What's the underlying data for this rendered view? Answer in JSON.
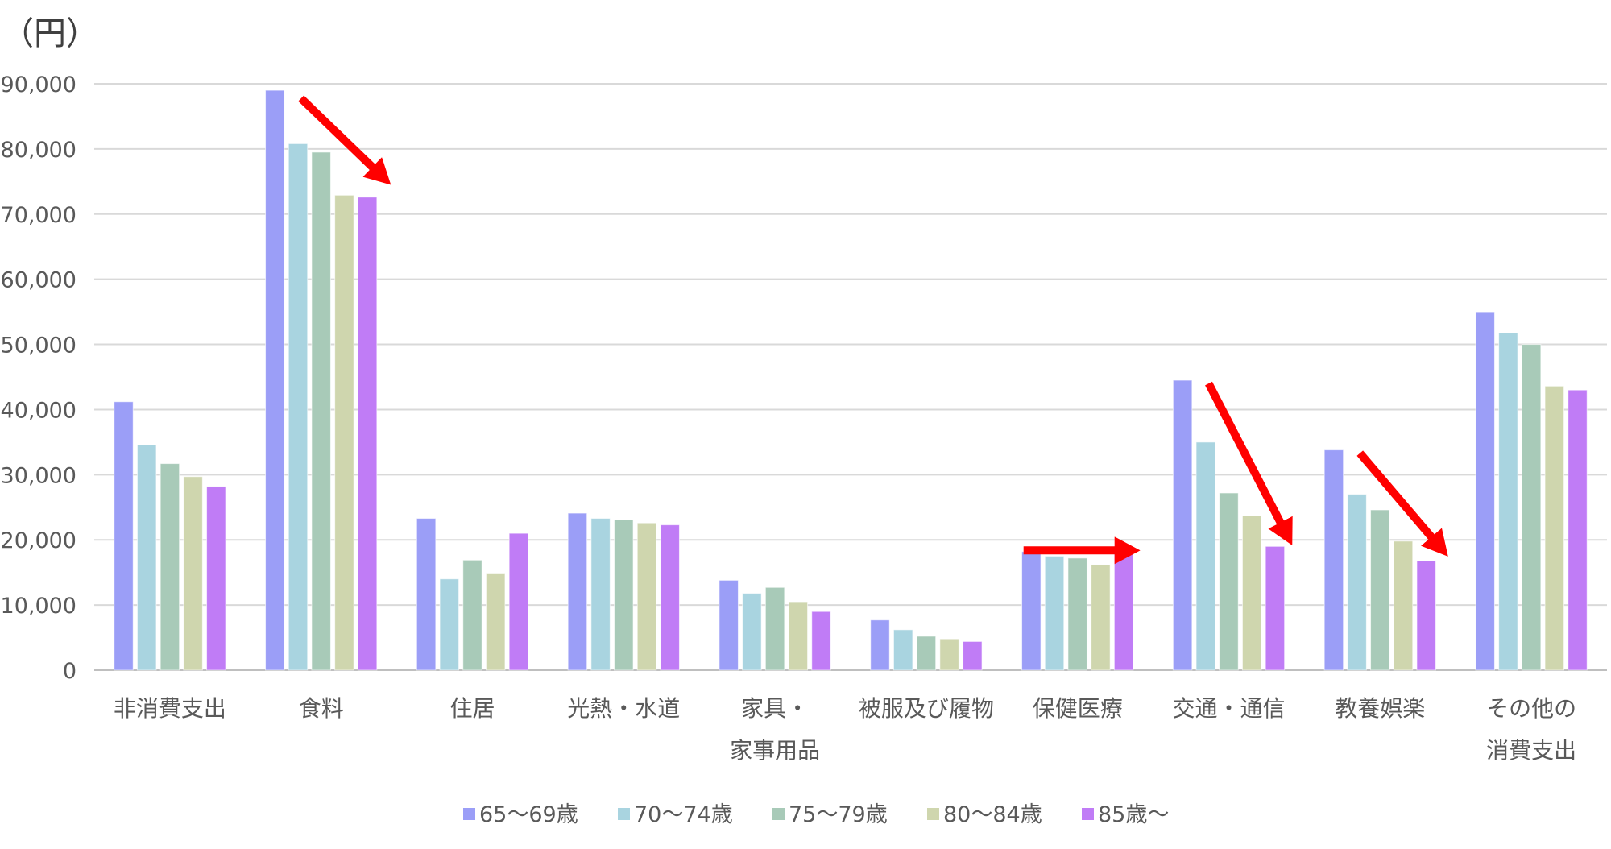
{
  "chart_data": {
    "type": "bar",
    "unit_label": "（円）",
    "categories": [
      [
        "非消費支出"
      ],
      [
        "食料"
      ],
      [
        "住居"
      ],
      [
        "光熱・水道"
      ],
      [
        "家具・",
        "家事用品"
      ],
      [
        "被服及び履物"
      ],
      [
        "保健医療"
      ],
      [
        "交通・通信"
      ],
      [
        "教養娯楽"
      ],
      [
        "その他の",
        "消費支出"
      ]
    ],
    "ylim": [
      0,
      90000
    ],
    "yticks": [
      0,
      10000,
      20000,
      30000,
      40000,
      50000,
      60000,
      70000,
      80000,
      90000
    ],
    "ytick_labels": [
      "0",
      "10,000",
      "20,000",
      "30,000",
      "40,000",
      "50,000",
      "60,000",
      "70,000",
      "80,000",
      "90,000"
    ],
    "grid": true,
    "legend_position": "bottom",
    "series": [
      {
        "name": "65〜69歳",
        "color": "#9b9ef7",
        "values": [
          41200,
          89000,
          23300,
          24100,
          13800,
          7700,
          18200,
          44500,
          33800,
          55000
        ]
      },
      {
        "name": "70〜74歳",
        "color": "#a9d4e0",
        "values": [
          34600,
          80800,
          14000,
          23300,
          11800,
          6200,
          17500,
          35000,
          27000,
          51800
        ]
      },
      {
        "name": "75〜79歳",
        "color": "#a8cab8",
        "values": [
          31700,
          79500,
          16900,
          23100,
          12700,
          5200,
          17200,
          27200,
          24600,
          50000
        ]
      },
      {
        "name": "80〜84歳",
        "color": "#cfd6ae",
        "values": [
          29700,
          72900,
          14900,
          22600,
          10500,
          4800,
          16200,
          23700,
          19800,
          43600
        ]
      },
      {
        "name": "85歳〜",
        "color": "#c07cf6",
        "values": [
          28200,
          72600,
          21000,
          22300,
          9000,
          4400,
          19000,
          19000,
          16800,
          43000
        ]
      }
    ],
    "annotations": [
      {
        "type": "arrow",
        "direction": "down-right",
        "category": "食料",
        "color": "#ff0000"
      },
      {
        "type": "arrow",
        "direction": "right",
        "category": "保健医療",
        "color": "#ff0000"
      },
      {
        "type": "arrow",
        "direction": "down-right",
        "category": "交通・通信",
        "color": "#ff0000"
      },
      {
        "type": "arrow",
        "direction": "down-right",
        "category": "教養娯楽",
        "color": "#ff0000"
      }
    ]
  }
}
